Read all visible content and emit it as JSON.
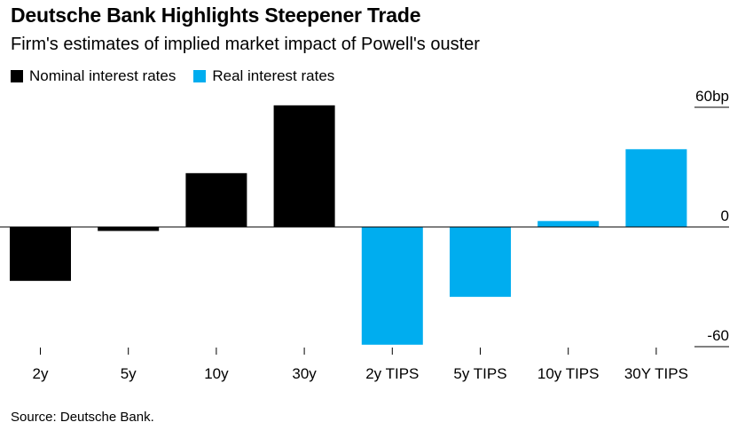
{
  "title": "Deutsche Bank Highlights Steepener Trade",
  "subtitle": "Firm's estimates of implied market impact of Powell's ouster",
  "source": "Source: Deutsche Bank.",
  "colors": {
    "nominal": "#000000",
    "real": "#00adef",
    "axis": "#000000",
    "tick": "#000000"
  },
  "chart_data": {
    "type": "bar",
    "title": "Deutsche Bank Highlights Steepener Trade",
    "subtitle": "Firm's estimates of implied market impact of Powell's ouster",
    "categories": [
      "2y",
      "5y",
      "10y",
      "30y",
      "2y TIPS",
      "5y TIPS",
      "10y TIPS",
      "30Y TIPS"
    ],
    "series": [
      {
        "name": "Nominal interest rates",
        "values": [
          -27,
          -2,
          27,
          61,
          null,
          null,
          null,
          null
        ]
      },
      {
        "name": "Real interest rates",
        "values": [
          null,
          null,
          null,
          null,
          -59,
          -35,
          3,
          39
        ]
      }
    ],
    "y_ticks": [
      {
        "value": 60,
        "label": "60bp"
      },
      {
        "value": 0,
        "label": "0"
      },
      {
        "value": -60,
        "label": "-60"
      }
    ],
    "ylim": [
      -60,
      60
    ],
    "xlabel": "",
    "ylabel": "",
    "grid": false,
    "legend_position": "top-left",
    "y_axis_side": "right"
  }
}
